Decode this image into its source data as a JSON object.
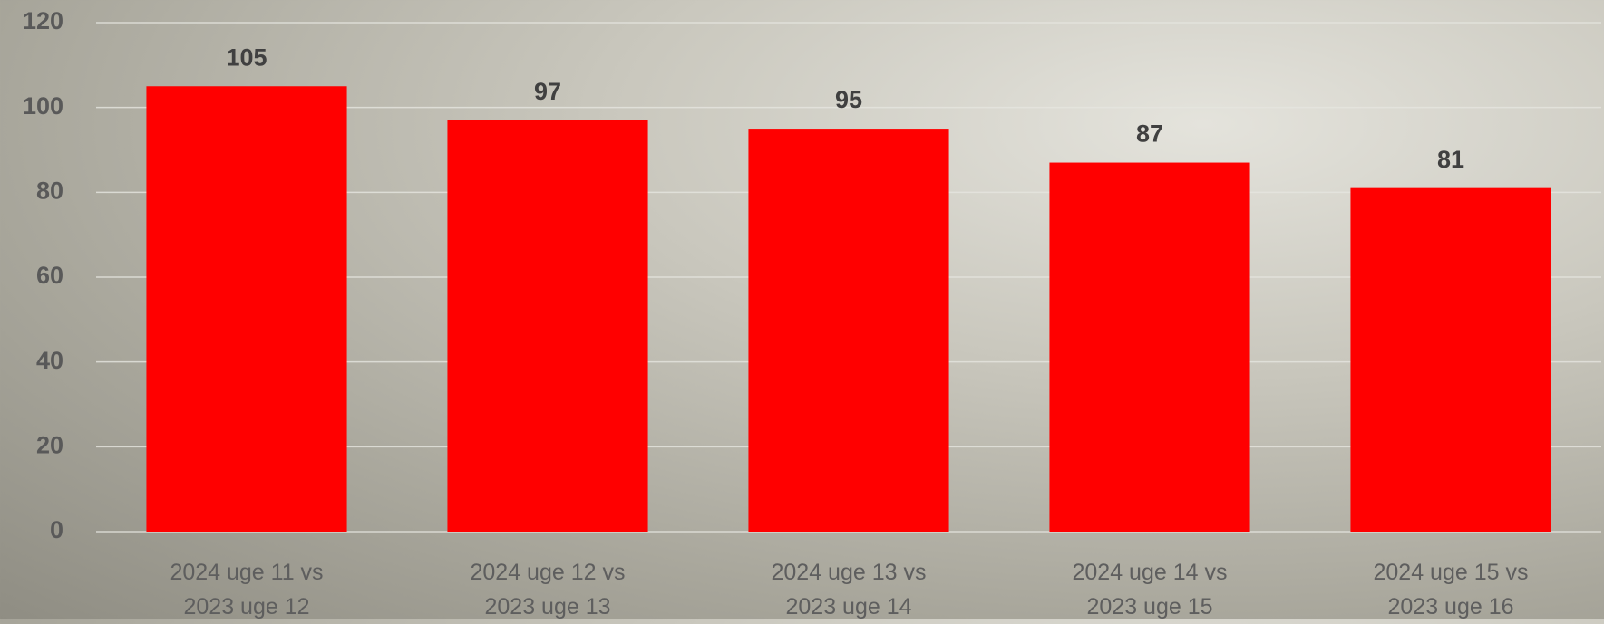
{
  "chart_data": {
    "type": "bar",
    "categories": [
      "2024 uge 11 vs 2023 uge 12",
      "2024 uge 12 vs 2023 uge 13",
      "2024 uge 13 vs 2023 uge 14",
      "2024 uge 14 vs 2023 uge 15",
      "2024 uge 15 vs 2023 uge 16"
    ],
    "values": [
      105,
      97,
      95,
      87,
      81
    ],
    "color": "#ff0000",
    "ylim": [
      0,
      120
    ],
    "yticks": [
      0,
      20,
      40,
      60,
      80,
      100,
      120
    ],
    "grid": true
  }
}
